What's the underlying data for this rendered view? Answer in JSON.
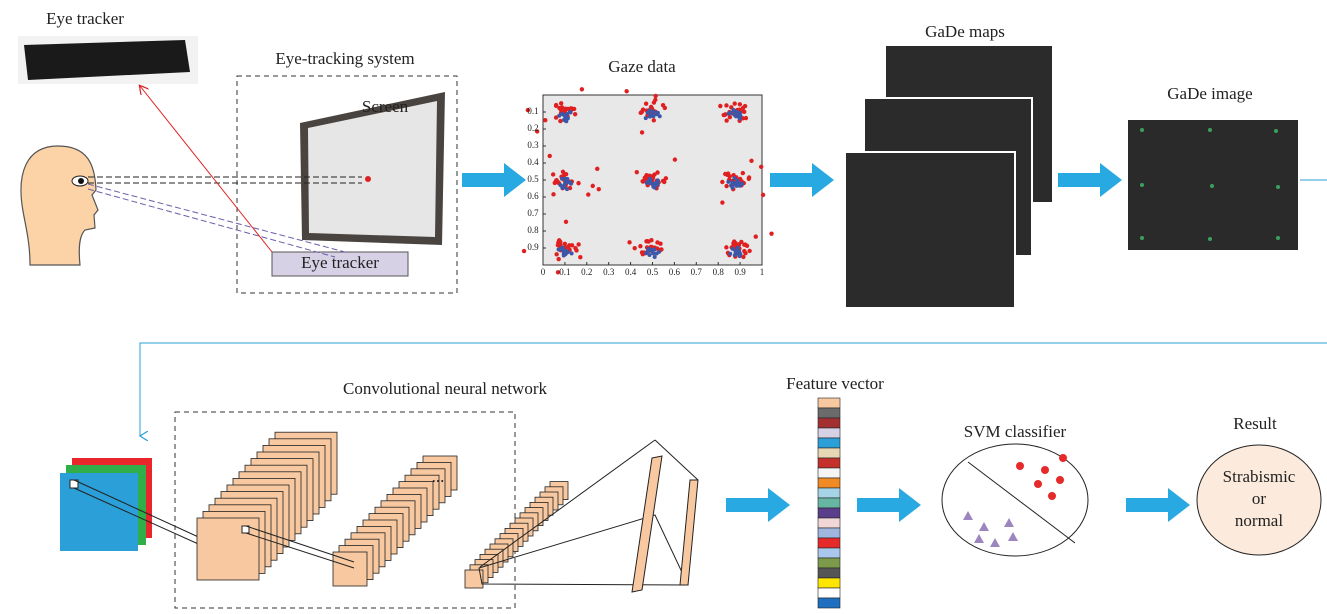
{
  "eye_tracker_photo": {
    "label": "Eye tracker"
  },
  "eye_tracking_system": {
    "title": "Eye-tracking system",
    "screen_label": "Screen",
    "tracker_label": "Eye tracker"
  },
  "gaze_data": {
    "title": "Gaze data",
    "xticks": [
      0,
      0.1,
      0.2,
      0.3,
      0.4,
      0.5,
      0.6,
      0.7,
      0.8,
      0.9,
      1
    ],
    "yticks": [
      0.1,
      0.2,
      0.3,
      0.4,
      0.5,
      0.6,
      0.7,
      0.8,
      0.9
    ]
  },
  "gade_maps": {
    "title": "GaDe maps"
  },
  "gade_image": {
    "title": "GaDe image"
  },
  "cnn": {
    "title": "Convolutional neural network",
    "ellipsis": "..."
  },
  "feature_vector": {
    "title": "Feature vector"
  },
  "svm": {
    "title": "SVM classifier"
  },
  "result": {
    "title": "Result",
    "lines": [
      "Strabismic",
      "or",
      "normal"
    ]
  }
}
